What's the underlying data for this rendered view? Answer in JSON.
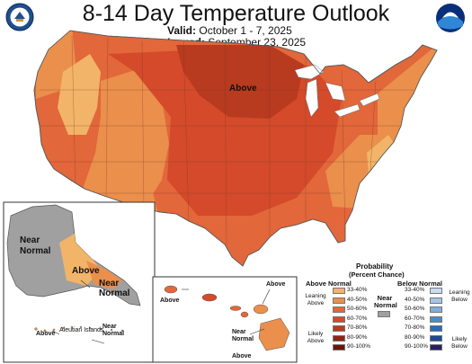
{
  "title": "8-14 Day Temperature Outlook",
  "valid_label": "Valid:",
  "valid_text": "October 1 - 7, 2025",
  "issued_label": "Issued:",
  "issued_text": "September 23, 2025",
  "map_labels": {
    "conus_above": "Above",
    "alaska_near_normal": "Near Normal",
    "alaska_above": "Above",
    "alaska_se_near_normal": "Near Normal",
    "aleutian_above": "Above",
    "aleutian_islands": "Aleutian Islands",
    "aleutian_near_normal": "Near Normal",
    "hawaii_above_w": "Above",
    "hawaii_above_e": "Above",
    "hawaii_near_normal": "Near Normal",
    "hawaii_above_s": "Above"
  },
  "legend": {
    "title": "Probability",
    "subtitle": "(Percent Chance)",
    "above_header": "Above Normal",
    "below_header": "Below Normal",
    "near_header": "Near Normal",
    "leaning_above": "Leaning Above",
    "likely_above": "Likely Above",
    "leaning_below": "Leaning Below",
    "likely_below": "Likely Below",
    "ranges": [
      "33-40%",
      "40-50%",
      "50-60%",
      "60-70%",
      "70-80%",
      "80-90%",
      "90-100%"
    ],
    "above_colors": [
      "#f2b468",
      "#ea8f4c",
      "#e2673a",
      "#d44a2a",
      "#b83a1f",
      "#8e2614",
      "#6a160c"
    ],
    "below_colors": [
      "#c8dcf0",
      "#a4c6e6",
      "#7eaedb",
      "#4a8dc8",
      "#2a6bb4",
      "#1c4a92",
      "#2a1f66"
    ],
    "near_color": "#a0a0a0"
  },
  "colors": {
    "cat_33_40": "#f2b468",
    "cat_40_50": "#ea8f4c",
    "cat_50_60": "#e2673a",
    "cat_60_70": "#d44a2a",
    "cat_70_80": "#b83a1f",
    "near_normal": "#a0a0a0"
  },
  "icons": [
    "doc-noaa-seal-icon",
    "noaa-logo-icon"
  ]
}
